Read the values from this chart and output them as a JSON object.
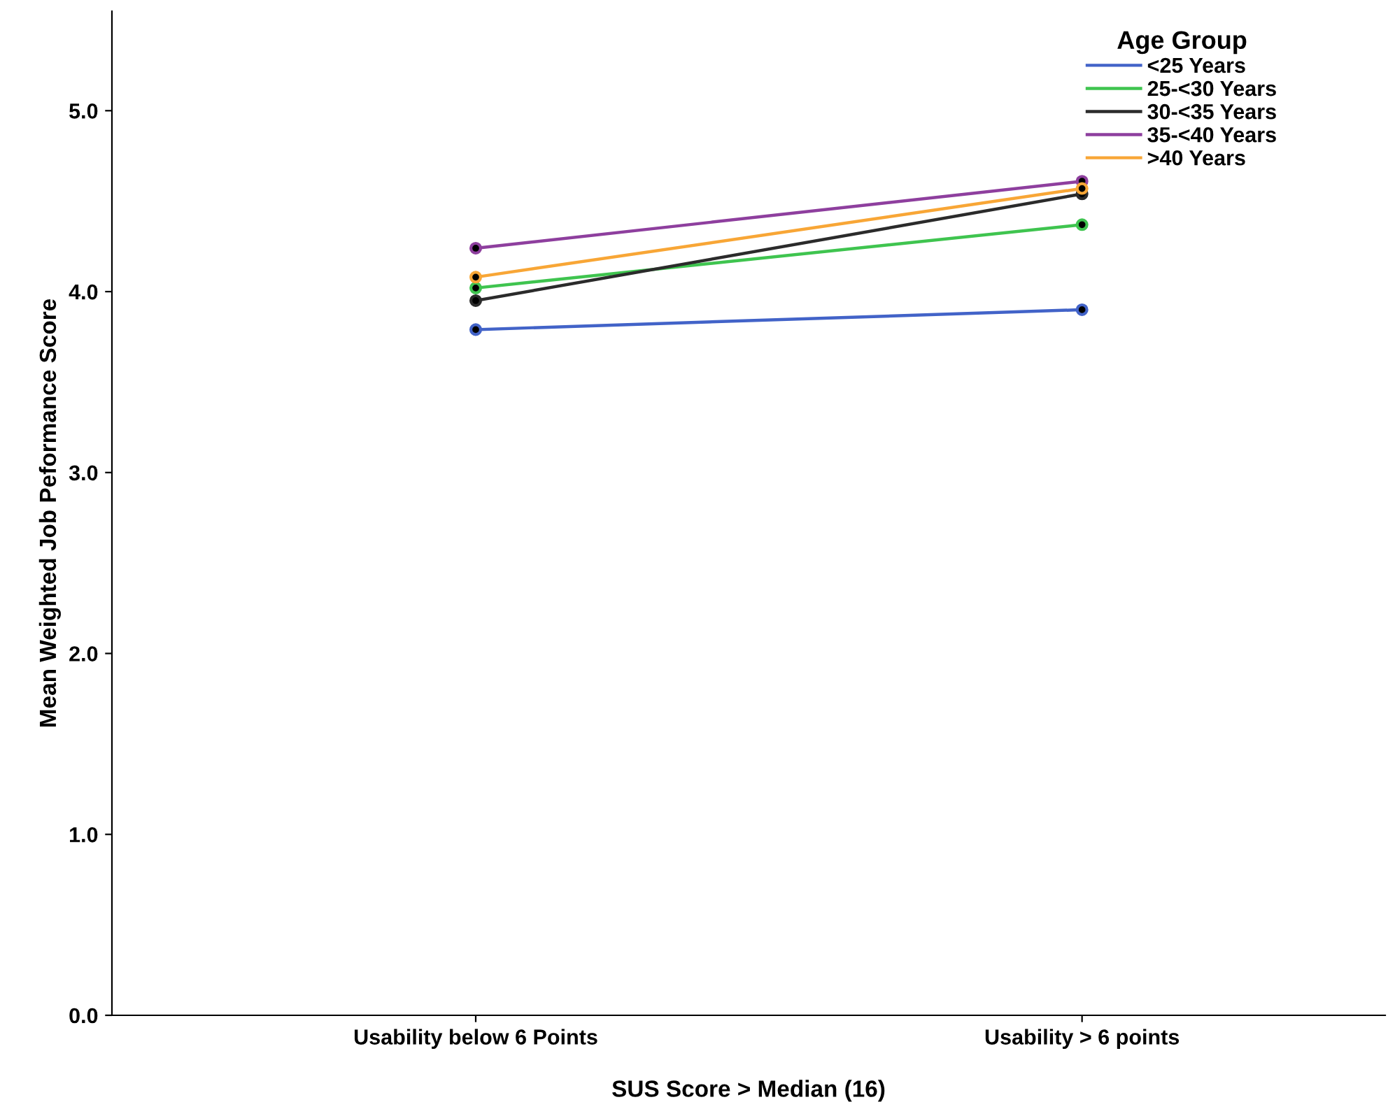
{
  "chart_data": {
    "type": "line",
    "xlabel": "SUS Score > Median (16)",
    "ylabel": "Mean Weighted Job Peformance Score",
    "legend_title": "Age Group",
    "categories": [
      "Usability below 6 Points",
      "Usability > 6 points"
    ],
    "series": [
      {
        "name": "<25 Years",
        "color": "#4263c8",
        "values": [
          3.79,
          3.9
        ]
      },
      {
        "name": "25-<30 Years",
        "color": "#3fc44f",
        "values": [
          4.02,
          4.37
        ]
      },
      {
        "name": "30-<35 Years",
        "color": "#2b2b2b",
        "values": [
          3.95,
          4.54
        ]
      },
      {
        "name": "35-<40 Years",
        "color": "#8e3f9e",
        "values": [
          4.24,
          4.61
        ]
      },
      {
        "name": ">40 Years",
        "color": "#f8a636",
        "values": [
          4.08,
          4.57
        ]
      }
    ],
    "ylim": [
      0,
      5.55
    ],
    "yticks": [
      {
        "value": 0,
        "label": "0.0"
      },
      {
        "value": 1,
        "label": "1.0"
      },
      {
        "value": 2,
        "label": "2.0"
      },
      {
        "value": 3,
        "label": "3.0"
      },
      {
        "value": 4,
        "label": "4.0"
      },
      {
        "value": 5,
        "label": "5.0"
      }
    ],
    "grid": false,
    "legend": "top right",
    "marker": "circle",
    "line_style": "solid"
  }
}
